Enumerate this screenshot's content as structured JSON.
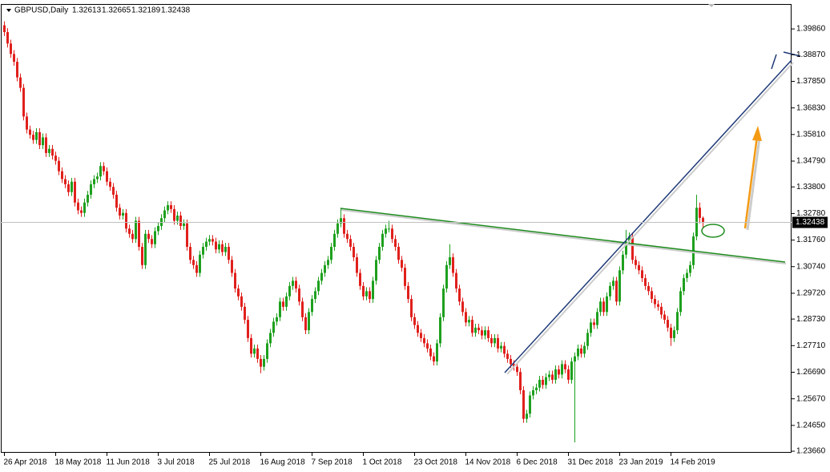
{
  "chart_data": {
    "type": "candlestick",
    "title": "GBPUSD,Daily",
    "up_color": "#1ea01e",
    "down_color": "#e0201c",
    "grid": false,
    "ylim": [
      1.236,
      1.4097
    ],
    "yticks": [
      {
        "value": 1.3986,
        "label": "1.39860"
      },
      {
        "value": 1.3887,
        "label": "1.38870"
      },
      {
        "value": 1.3785,
        "label": "1.37850"
      },
      {
        "value": 1.3683,
        "label": "1.36830"
      },
      {
        "value": 1.3581,
        "label": "1.35810"
      },
      {
        "value": 1.3479,
        "label": "1.34790"
      },
      {
        "value": 1.338,
        "label": "1.33800"
      },
      {
        "value": 1.3278,
        "label": "1.32780"
      },
      {
        "value": 1.3176,
        "label": "1.31760"
      },
      {
        "value": 1.3074,
        "label": "1.30740"
      },
      {
        "value": 1.2972,
        "label": "1.29720"
      },
      {
        "value": 1.2873,
        "label": "1.28730"
      },
      {
        "value": 1.2771,
        "label": "1.27710"
      },
      {
        "value": 1.2669,
        "label": "1.26690"
      },
      {
        "value": 1.2567,
        "label": "1.25670"
      },
      {
        "value": 1.2465,
        "label": "1.24650"
      },
      {
        "value": 1.2366,
        "label": "1.23660"
      }
    ],
    "categories": [
      "26 Apr 2018",
      null,
      null,
      null,
      null,
      null,
      null,
      null,
      null,
      null,
      null,
      null,
      null,
      null,
      null,
      null,
      "18 May 2018",
      null,
      null,
      null,
      null,
      null,
      null,
      null,
      null,
      null,
      null,
      null,
      null,
      null,
      null,
      null,
      "11 Jun 2018",
      null,
      null,
      null,
      null,
      null,
      null,
      null,
      null,
      null,
      null,
      null,
      null,
      null,
      null,
      null,
      "3 Jul 2018",
      null,
      null,
      null,
      null,
      null,
      null,
      null,
      null,
      null,
      null,
      null,
      null,
      null,
      null,
      null,
      "25 Jul 2018",
      null,
      null,
      null,
      null,
      null,
      null,
      null,
      null,
      null,
      null,
      null,
      null,
      null,
      null,
      null,
      "16 Aug 2018",
      null,
      null,
      null,
      null,
      null,
      null,
      null,
      null,
      null,
      null,
      null,
      null,
      null,
      null,
      null,
      "7 Sep 2018",
      null,
      null,
      null,
      null,
      null,
      null,
      null,
      null,
      null,
      null,
      null,
      null,
      null,
      null,
      null,
      "1 Oct 2018",
      null,
      null,
      null,
      null,
      null,
      null,
      null,
      null,
      null,
      null,
      null,
      null,
      null,
      null,
      null,
      "23 Oct 2018",
      null,
      null,
      null,
      null,
      null,
      null,
      null,
      null,
      null,
      null,
      null,
      null,
      null,
      null,
      null,
      "14 Nov 2018",
      null,
      null,
      null,
      null,
      null,
      null,
      null,
      null,
      null,
      null,
      null,
      null,
      null,
      null,
      null,
      "6 Dec 2018",
      null,
      null,
      null,
      null,
      null,
      null,
      null,
      null,
      null,
      null,
      null,
      null,
      null,
      null,
      null,
      "31 Dec 2018",
      null,
      null,
      null,
      null,
      null,
      null,
      null,
      null,
      null,
      null,
      null,
      null,
      null,
      null,
      null,
      "23 Jan 2019",
      null,
      null,
      null,
      null,
      null,
      null,
      null,
      null,
      null,
      null,
      null,
      null,
      null,
      null,
      null,
      "14 Feb 2019",
      null,
      null,
      null,
      null,
      null,
      null,
      null,
      null,
      null,
      null
    ],
    "open": [
      1.4,
      1.3974,
      1.393,
      1.389,
      1.386,
      1.38,
      1.376,
      1.365,
      1.36,
      1.358,
      1.356,
      1.359,
      1.354,
      1.357,
      1.351,
      1.3526,
      1.35,
      1.348,
      1.344,
      1.341,
      1.339,
      1.336,
      1.34,
      1.332,
      1.329,
      1.328,
      1.332,
      1.335,
      1.339,
      1.341,
      1.342,
      1.346,
      1.344,
      1.34,
      1.338,
      1.335,
      1.33,
      1.327,
      1.328,
      1.322,
      1.32,
      1.318,
      1.325,
      1.315,
      1.308,
      1.32,
      1.318,
      1.316,
      1.321,
      1.323,
      1.326,
      1.329,
      1.331,
      1.3295,
      1.325,
      1.327,
      1.323,
      1.324,
      1.315,
      1.31,
      1.308,
      1.305,
      1.312,
      1.315,
      1.317,
      1.318,
      1.317,
      1.314,
      1.316,
      1.313,
      1.315,
      1.31,
      1.305,
      1.299,
      1.296,
      1.292,
      1.287,
      1.28,
      1.274,
      1.276,
      1.272,
      1.269,
      1.272,
      1.278,
      1.282,
      1.2863,
      1.288,
      1.294,
      1.292,
      1.296,
      1.3,
      1.302,
      1.299,
      1.294,
      1.288,
      1.283,
      1.29,
      1.295,
      1.298,
      1.302,
      1.305,
      1.308,
      1.31,
      1.315,
      1.32,
      1.324,
      1.326,
      1.32,
      1.318,
      1.315,
      1.311,
      1.305,
      1.3,
      1.296,
      1.298,
      1.295,
      1.302,
      1.31,
      1.315,
      1.32,
      1.322,
      1.322,
      1.318,
      1.315,
      1.31,
      1.307,
      1.3,
      1.295,
      1.288,
      1.285,
      1.282,
      1.28,
      1.278,
      1.276,
      1.273,
      1.271,
      1.278,
      1.288,
      1.299,
      1.308,
      1.311,
      1.305,
      1.299,
      1.294,
      1.29,
      1.286,
      1.287,
      1.282,
      1.284,
      1.283,
      1.281,
      1.283,
      1.28,
      1.278,
      1.28,
      1.276,
      1.277,
      1.274,
      1.272,
      1.27,
      1.269,
      1.267,
      1.26,
      1.249,
      1.251,
      1.258,
      1.26,
      1.261,
      1.264,
      1.262,
      1.265,
      1.266,
      1.264,
      1.268,
      1.266,
      1.27,
      1.268,
      1.264,
      1.271,
      1.273,
      1.276,
      1.274,
      1.277,
      1.282,
      1.286,
      1.285,
      1.29,
      1.294,
      1.29,
      1.296,
      1.3,
      1.302,
      1.294,
      1.306,
      1.312,
      1.317,
      1.319,
      1.31,
      1.308,
      1.306,
      1.303,
      1.3,
      1.298,
      1.295,
      1.293,
      1.292,
      1.289,
      1.287,
      1.284,
      1.28,
      1.283,
      1.29,
      1.298,
      1.303,
      1.305,
      1.308,
      1.319,
      1.33,
      1.32613
    ],
    "high": [
      1.4015,
      1.3989,
      1.3945,
      1.3905,
      1.3875,
      1.3815,
      1.3775,
      1.3665,
      1.3615,
      1.3595,
      1.3605,
      1.3605,
      1.3585,
      1.3585,
      1.3541,
      1.3541,
      1.3515,
      1.3495,
      1.3455,
      1.3425,
      1.3405,
      1.3415,
      1.3415,
      1.3335,
      1.3305,
      1.3335,
      1.3365,
      1.3405,
      1.3425,
      1.3435,
      1.3475,
      1.3475,
      1.3455,
      1.3415,
      1.3395,
      1.3365,
      1.3315,
      1.3295,
      1.3295,
      1.3235,
      1.3215,
      1.3265,
      1.3265,
      1.3165,
      1.3215,
      1.3215,
      1.3195,
      1.3225,
      1.3245,
      1.3275,
      1.3305,
      1.3325,
      1.3325,
      1.331,
      1.3285,
      1.3285,
      1.3255,
      1.3255,
      1.3165,
      1.3115,
      1.3095,
      1.3135,
      1.3165,
      1.3185,
      1.3195,
      1.3195,
      1.3185,
      1.3175,
      1.3175,
      1.3165,
      1.3165,
      1.3115,
      1.3065,
      1.3005,
      1.2975,
      1.2935,
      1.2885,
      1.2815,
      1.2775,
      1.2775,
      1.2735,
      1.2735,
      1.2795,
      1.2835,
      1.2878,
      1.2895,
      1.2955,
      1.2955,
      1.2975,
      1.3015,
      1.3035,
      1.3035,
      1.3005,
      1.2955,
      1.2895,
      1.2915,
      1.2965,
      1.2995,
      1.3035,
      1.3065,
      1.3095,
      1.3115,
      1.3165,
      1.3215,
      1.3255,
      1.33,
      1.3275,
      1.3215,
      1.3195,
      1.3165,
      1.3125,
      1.3065,
      1.3015,
      1.2995,
      1.2995,
      1.3035,
      1.3115,
      1.3165,
      1.3215,
      1.3235,
      1.325,
      1.3235,
      1.3195,
      1.3165,
      1.3115,
      1.3085,
      1.3015,
      1.2965,
      1.2895,
      1.2865,
      1.2835,
      1.2815,
      1.2795,
      1.2775,
      1.2745,
      1.2795,
      1.2895,
      1.3005,
      1.3095,
      1.316,
      1.3125,
      1.3065,
      1.3005,
      1.2955,
      1.2915,
      1.2885,
      1.2885,
      1.2855,
      1.2855,
      1.2845,
      1.2845,
      1.2845,
      1.2815,
      1.2815,
      1.2815,
      1.2785,
      1.2785,
      1.2755,
      1.2735,
      1.2715,
      1.2705,
      1.2685,
      1.2615,
      1.2525,
      1.2595,
      1.2615,
      1.2625,
      1.2655,
      1.2655,
      1.2665,
      1.2675,
      1.2675,
      1.2695,
      1.2695,
      1.2715,
      1.2715,
      1.2695,
      1.2725,
      1.2745,
      1.2775,
      1.2775,
      1.2785,
      1.2835,
      1.2875,
      1.2875,
      1.2915,
      1.2955,
      1.2955,
      1.2975,
      1.3015,
      1.3035,
      1.3035,
      1.3075,
      1.3135,
      1.3215,
      1.3205,
      1.3205,
      1.3115,
      1.3095,
      1.3075,
      1.3045,
      1.3015,
      1.2995,
      1.2965,
      1.2945,
      1.2935,
      1.2905,
      1.2885,
      1.2855,
      1.2845,
      1.2915,
      1.2995,
      1.3045,
      1.3065,
      1.3095,
      1.3205,
      1.335,
      1.332,
      1.32665
    ],
    "low": [
      1.3959,
      1.3915,
      1.3875,
      1.3845,
      1.3785,
      1.3745,
      1.3635,
      1.3585,
      1.3565,
      1.3545,
      1.3545,
      1.3525,
      1.3525,
      1.3495,
      1.3495,
      1.3485,
      1.3465,
      1.3425,
      1.3395,
      1.3375,
      1.3345,
      1.3345,
      1.3305,
      1.3275,
      1.3265,
      1.3265,
      1.3305,
      1.3335,
      1.3375,
      1.3395,
      1.3405,
      1.3425,
      1.3385,
      1.3365,
      1.3335,
      1.3285,
      1.3255,
      1.3255,
      1.3205,
      1.3185,
      1.3165,
      1.3165,
      1.3135,
      1.3065,
      1.3065,
      1.3165,
      1.3145,
      1.3145,
      1.3195,
      1.3215,
      1.3245,
      1.3275,
      1.328,
      1.3235,
      1.3235,
      1.3215,
      1.3215,
      1.3135,
      1.3085,
      1.3065,
      1.3035,
      1.3035,
      1.3105,
      1.3135,
      1.3155,
      1.3155,
      1.3125,
      1.3125,
      1.3115,
      1.3115,
      1.3085,
      1.3035,
      1.2975,
      1.2945,
      1.2905,
      1.2855,
      1.2785,
      1.2725,
      1.2725,
      1.2705,
      1.2665,
      1.2675,
      1.2705,
      1.2765,
      1.2805,
      1.2848,
      1.2865,
      1.2905,
      1.2905,
      1.2945,
      1.2985,
      1.2975,
      1.2925,
      1.2865,
      1.2815,
      1.2815,
      1.2885,
      1.2935,
      1.2965,
      1.3005,
      1.3035,
      1.3065,
      1.3085,
      1.3135,
      1.3185,
      1.3225,
      1.3185,
      1.3165,
      1.3135,
      1.3095,
      1.3035,
      1.2985,
      1.2945,
      1.2945,
      1.2935,
      1.2935,
      1.3005,
      1.3085,
      1.3135,
      1.3185,
      1.3205,
      1.3165,
      1.3135,
      1.3085,
      1.3055,
      1.2985,
      1.2935,
      1.2865,
      1.2835,
      1.2805,
      1.2785,
      1.2765,
      1.2745,
      1.2715,
      1.2695,
      1.2695,
      1.2765,
      1.2865,
      1.2975,
      1.3065,
      1.3035,
      1.2975,
      1.2925,
      1.2885,
      1.2845,
      1.2845,
      1.2805,
      1.2805,
      1.2815,
      1.2795,
      1.2795,
      1.2785,
      1.2765,
      1.2765,
      1.2745,
      1.2745,
      1.2725,
      1.2705,
      1.2685,
      1.2675,
      1.2655,
      1.2585,
      1.2475,
      1.2475,
      1.2495,
      1.2565,
      1.2585,
      1.2595,
      1.2605,
      1.2605,
      1.2635,
      1.2625,
      1.2625,
      1.2645,
      1.2645,
      1.2665,
      1.2625,
      1.2625,
      1.24,
      1.2715,
      1.2725,
      1.2725,
      1.2755,
      1.2805,
      1.2835,
      1.2835,
      1.2885,
      1.2885,
      1.2885,
      1.2945,
      1.2985,
      1.2925,
      1.2925,
      1.3045,
      1.3105,
      1.3155,
      1.3085,
      1.3065,
      1.3045,
      1.3015,
      1.2985,
      1.2965,
      1.2935,
      1.2915,
      1.2905,
      1.2875,
      1.2855,
      1.2825,
      1.277,
      1.2785,
      1.2815,
      1.2885,
      1.2965,
      1.3015,
      1.3035,
      1.3065,
      1.3175,
      1.324,
      1.32189
    ],
    "close": [
      1.3974,
      1.393,
      1.389,
      1.386,
      1.38,
      1.376,
      1.365,
      1.36,
      1.358,
      1.356,
      1.359,
      1.354,
      1.357,
      1.351,
      1.3526,
      1.35,
      1.348,
      1.344,
      1.341,
      1.339,
      1.336,
      1.34,
      1.332,
      1.329,
      1.328,
      1.332,
      1.335,
      1.339,
      1.341,
      1.342,
      1.346,
      1.344,
      1.34,
      1.338,
      1.335,
      1.33,
      1.327,
      1.328,
      1.322,
      1.32,
      1.318,
      1.325,
      1.315,
      1.308,
      1.32,
      1.318,
      1.316,
      1.321,
      1.323,
      1.326,
      1.329,
      1.331,
      1.3295,
      1.325,
      1.327,
      1.323,
      1.324,
      1.315,
      1.31,
      1.308,
      1.305,
      1.312,
      1.315,
      1.317,
      1.318,
      1.317,
      1.314,
      1.316,
      1.313,
      1.315,
      1.31,
      1.305,
      1.299,
      1.296,
      1.292,
      1.287,
      1.28,
      1.274,
      1.276,
      1.272,
      1.269,
      1.272,
      1.278,
      1.282,
      1.2863,
      1.288,
      1.294,
      1.292,
      1.296,
      1.3,
      1.302,
      1.299,
      1.294,
      1.288,
      1.283,
      1.29,
      1.295,
      1.298,
      1.302,
      1.305,
      1.308,
      1.31,
      1.315,
      1.32,
      1.324,
      1.326,
      1.32,
      1.318,
      1.315,
      1.311,
      1.305,
      1.3,
      1.296,
      1.298,
      1.295,
      1.302,
      1.31,
      1.315,
      1.32,
      1.322,
      1.322,
      1.318,
      1.315,
      1.31,
      1.307,
      1.3,
      1.295,
      1.288,
      1.285,
      1.282,
      1.28,
      1.278,
      1.276,
      1.273,
      1.271,
      1.278,
      1.288,
      1.299,
      1.308,
      1.311,
      1.305,
      1.299,
      1.294,
      1.29,
      1.286,
      1.287,
      1.282,
      1.284,
      1.283,
      1.281,
      1.283,
      1.28,
      1.278,
      1.28,
      1.276,
      1.277,
      1.274,
      1.272,
      1.27,
      1.269,
      1.267,
      1.26,
      1.249,
      1.251,
      1.258,
      1.26,
      1.261,
      1.264,
      1.262,
      1.265,
      1.266,
      1.264,
      1.268,
      1.266,
      1.27,
      1.268,
      1.264,
      1.271,
      1.273,
      1.276,
      1.274,
      1.277,
      1.282,
      1.286,
      1.285,
      1.29,
      1.294,
      1.29,
      1.296,
      1.3,
      1.302,
      1.294,
      1.306,
      1.312,
      1.317,
      1.319,
      1.31,
      1.308,
      1.306,
      1.303,
      1.3,
      1.298,
      1.295,
      1.293,
      1.292,
      1.289,
      1.287,
      1.284,
      1.28,
      1.283,
      1.29,
      1.298,
      1.303,
      1.305,
      1.308,
      1.319,
      1.33,
      1.3261,
      1.32438
    ]
  }
}
